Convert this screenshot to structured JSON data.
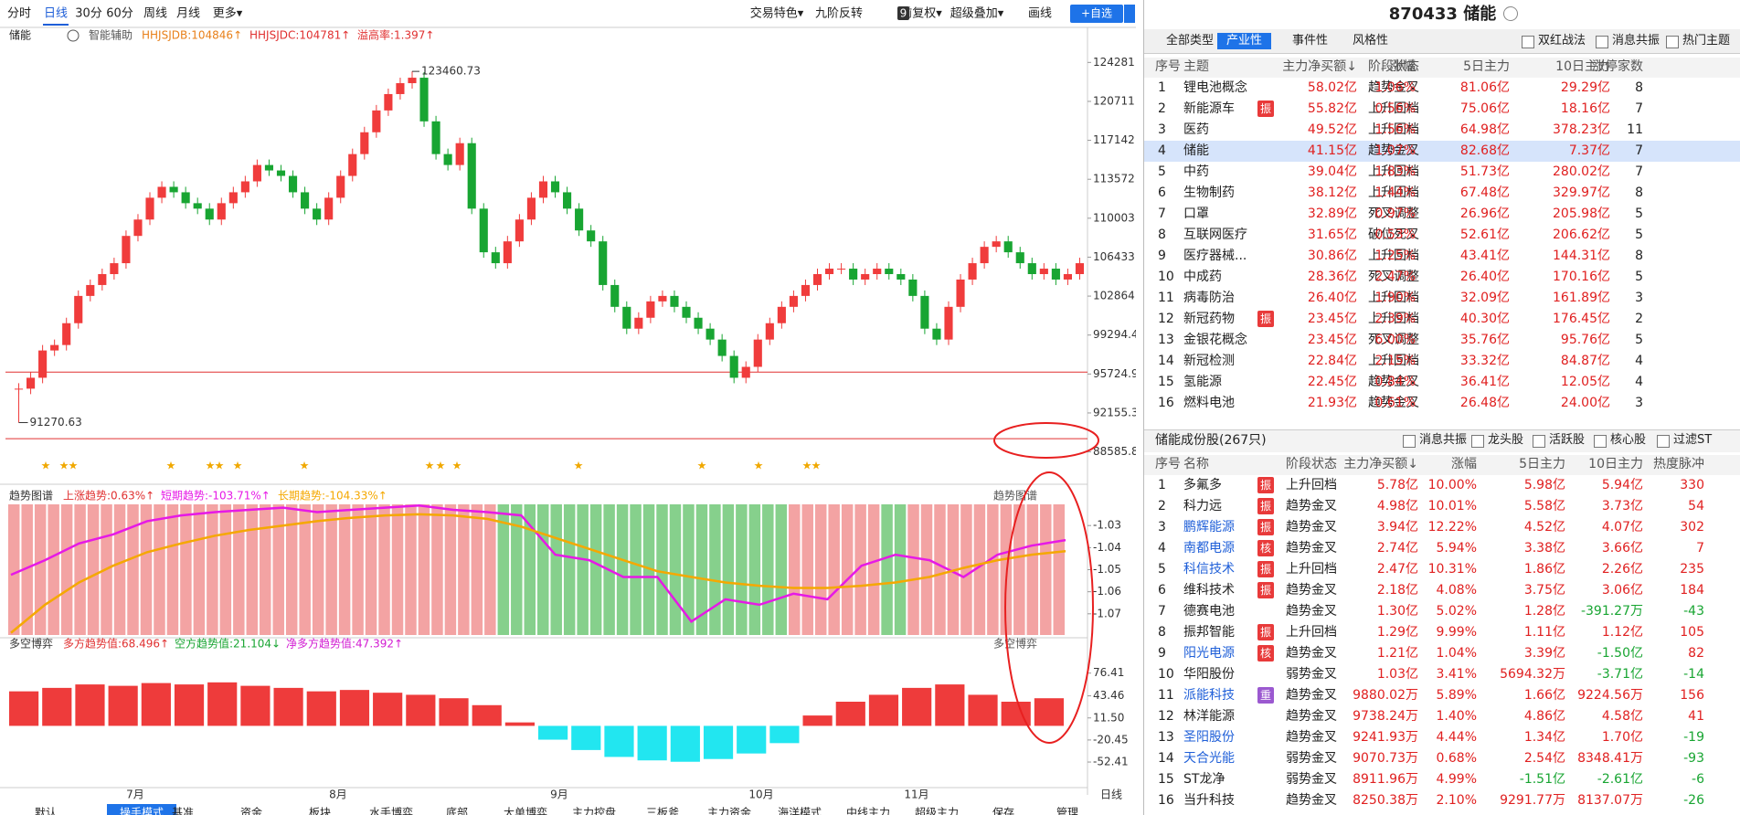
{
  "toolbar": {
    "periods": [
      "分时",
      "日线",
      "30分",
      "60分",
      "周线",
      "月线",
      "更多▾"
    ],
    "selected": 1,
    "tools": [
      "交易特色▾",
      "九阶反转",
      "前复权▾",
      "超级叠加▾",
      "画线"
    ],
    "badge": "9",
    "add_button": "+自选"
  },
  "main": {
    "header": {
      "name": "储能",
      "assist": "智能辅助",
      "ind1": "HHJSJDB:104846↑",
      "ind2": "HHJSJDC:104781↑",
      "ind3": "溢高率:1.397↑"
    },
    "ylim": [
      88300,
      125900
    ],
    "yticks": [
      {
        "value": 124281.3,
        "label": "124281.3"
      },
      {
        "value": 120711.74,
        "label": "120711.7"
      },
      {
        "value": 117142.2,
        "label": "117142.2"
      },
      {
        "value": 113572.6,
        "label": "113572.6"
      },
      {
        "value": 110003.1,
        "label": "110003.1"
      },
      {
        "value": 106433.5,
        "label": "106433.5"
      },
      {
        "value": 102864,
        "label": "102864.0"
      },
      {
        "value": 99294.46,
        "label": "99294.46"
      },
      {
        "value": 95724.91,
        "label": "95724.91"
      },
      {
        "value": 92155.36,
        "label": "92155.36"
      },
      {
        "value": 88585.81,
        "label": "88585.81"
      }
    ],
    "closes": [
      94381,
      95381,
      97881,
      98381,
      100381,
      102881,
      103881,
      104881,
      105881,
      108381,
      109881,
      111881,
      112881,
      112381,
      111381,
      110881,
      109881,
      111381,
      112381,
      113381,
      114881,
      114381,
      113881,
      112381,
      110881,
      109881,
      111881,
      113881,
      115881,
      117881,
      119881,
      121381,
      122381,
      122881,
      118881,
      115881,
      114881,
      116881,
      110881,
      106881,
      105881,
      107881,
      109881,
      111881,
      113381,
      112381,
      110881,
      108881,
      107881,
      103881,
      101881,
      99881,
      100881,
      102381,
      102881,
      101881,
      100881,
      99881,
      98881,
      97381,
      95381,
      96381,
      98881,
      100381,
      101881,
      102881,
      103881,
      104881,
      105381,
      105381,
      104381,
      104881,
      105381,
      104881,
      104381,
      102881,
      99881,
      98881,
      101881,
      104381,
      105881,
      107381,
      107881,
      106881,
      105881,
      104881,
      105381,
      104381,
      104881,
      105881
    ],
    "high": {
      "value": 123460.73,
      "label": "123460.73"
    },
    "low": {
      "value": 91270.63,
      "label": "91270.63"
    },
    "hlines": [
      95900,
      89800
    ],
    "up_color": "#f03c3c",
    "down_color": "#18a532"
  },
  "months": [
    "7月",
    "8月",
    "9月",
    "10月",
    "11月"
  ],
  "period_label": "日线",
  "trend": {
    "title": "趋势图谱",
    "up": "上涨趋势:0.63%↑",
    "short": "短期趋势:-103.71%↑",
    "long": "长期趋势:-104.33%↑",
    "right_title": "趋势图谱",
    "ylim": [
      -1.0796,
      -1.0204
    ],
    "yticks": [
      -1.03,
      -1.04,
      -1.05,
      -1.06,
      -1.07
    ],
    "short_values": [
      -1.0523,
      -1.0457,
      -1.0381,
      -1.034,
      -1.028,
      -1.0254,
      -1.0239,
      -1.0229,
      -1.0219,
      -1.0239,
      -1.0229,
      -1.0219,
      -1.0209,
      -1.0229,
      -1.0239,
      -1.0254,
      -1.0432,
      -1.0457,
      -1.0533,
      -1.0533,
      -1.0735,
      -1.0634,
      -1.0659,
      -1.0609,
      -1.0634,
      -1.0482,
      -1.0432,
      -1.0457,
      -1.0533,
      -1.0432,
      -1.0391,
      -1.0366
    ],
    "long_values": [
      -1.0786,
      -1.0659,
      -1.0558,
      -1.0482,
      -1.0421,
      -1.0381,
      -1.0346,
      -1.032,
      -1.03,
      -1.028,
      -1.0265,
      -1.0254,
      -1.0249,
      -1.0254,
      -1.027,
      -1.0305,
      -1.0356,
      -1.0406,
      -1.0457,
      -1.0507,
      -1.0533,
      -1.0558,
      -1.0573,
      -1.0583,
      -1.0583,
      -1.0573,
      -1.0558,
      -1.0533,
      -1.0492,
      -1.0457,
      -1.0432,
      -1.0416
    ],
    "short_color": "#e619e6",
    "long_color": "#f5a800"
  },
  "game": {
    "title": "多空博弈",
    "bull": "多方趋势值:68.496↑",
    "bear": "空方趋势值:21.104↓",
    "net": "净多方趋势值:47.392↑",
    "right_title": "多空博弈",
    "ylim": [
      -89.4,
      103.8
    ],
    "yticks": [
      {
        "value": 76.41,
        "label": "76.41"
      },
      {
        "value": 43.46,
        "label": "43.46"
      },
      {
        "value": 11.5,
        "label": "11.50"
      },
      {
        "value": -20.45,
        "label": "-20.45"
      },
      {
        "value": -52.41,
        "label": "-52.41"
      }
    ],
    "values": [
      50,
      55,
      60,
      58,
      62,
      60,
      63,
      58,
      55,
      50,
      52,
      48,
      45,
      40,
      30,
      5,
      -20,
      -35,
      -45,
      -50,
      -52,
      -48,
      -40,
      -25,
      15,
      35,
      45,
      55,
      60,
      45,
      35,
      40
    ],
    "pos_color": "#ee3b3b",
    "neg_color": "#22e6f0"
  },
  "tabs": [
    "默认",
    "操手模式",
    "基准",
    "资金",
    "板块",
    "水手博弈",
    "底部",
    "大单博弈",
    "主力控盘",
    "三板斧",
    "主力资金",
    "海洋模式",
    "中线主力",
    "超级主力",
    "保存",
    "管理"
  ],
  "tab_selected": 1,
  "right": {
    "title": "870433 储能",
    "type_tabs": [
      "全部类型",
      "产业性",
      "事件性",
      "风格性"
    ],
    "type_selected": 1,
    "filters": [
      "双红战法",
      "消息共振",
      "热门主题"
    ],
    "themes": {
      "headers": [
        "序号",
        "主题",
        "主力净买额↓",
        "阶段状态",
        "涨幅",
        "5日主力",
        "10日主力",
        "涨停家数"
      ],
      "selected_row": 3,
      "rows": [
        [
          "1",
          "锂电池概念",
          "",
          "58.02亿",
          "趋势金叉",
          "1.06%",
          "81.06亿",
          "29.29亿",
          "8"
        ],
        [
          "2",
          "新能源车",
          "振",
          "55.82亿",
          "上升回档",
          "0.56%",
          "75.06亿",
          "18.16亿",
          "7"
        ],
        [
          "3",
          "医药",
          "",
          "49.52亿",
          "上升回档",
          "1.56%",
          "64.98亿",
          "378.23亿",
          "11"
        ],
        [
          "4",
          "储能",
          "",
          "41.15亿",
          "趋势金叉",
          "1.07%",
          "82.68亿",
          "7.37亿",
          "7"
        ],
        [
          "5",
          "中药",
          "",
          "39.04亿",
          "上升回档",
          "1.83%",
          "51.73亿",
          "280.02亿",
          "7"
        ],
        [
          "6",
          "生物制药",
          "",
          "38.12亿",
          "上升回档",
          "1.44%",
          "67.48亿",
          "329.97亿",
          "8"
        ],
        [
          "7",
          "口罩",
          "",
          "32.89亿",
          "死叉调整",
          "0.97%",
          "26.96亿",
          "205.98亿",
          "5"
        ],
        [
          "8",
          "互联网医疗",
          "",
          "31.65亿",
          "破位死叉",
          "0.53%",
          "52.61亿",
          "206.62亿",
          "5"
        ],
        [
          "9",
          "医疗器械...",
          "",
          "30.86亿",
          "上升回档",
          "1.25%",
          "43.41亿",
          "144.31亿",
          "8"
        ],
        [
          "10",
          "中成药",
          "",
          "28.36亿",
          "死叉调整",
          "2.47%",
          "26.40亿",
          "170.16亿",
          "5"
        ],
        [
          "11",
          "病毒防治",
          "",
          "26.40亿",
          "上升回档",
          "1.90%",
          "32.09亿",
          "161.89亿",
          "3"
        ],
        [
          "12",
          "新冠药物",
          "振",
          "23.45亿",
          "上升回档",
          "2.39%",
          "40.30亿",
          "176.45亿",
          "2"
        ],
        [
          "13",
          "金银花概念",
          "",
          "23.45亿",
          "死叉调整",
          "6.00%",
          "35.76亿",
          "95.76亿",
          "5"
        ],
        [
          "14",
          "新冠检测",
          "",
          "22.84亿",
          "上升回档",
          "2.15%",
          "33.32亿",
          "84.87亿",
          "4"
        ],
        [
          "15",
          "氢能源",
          "",
          "22.45亿",
          "趋势金叉",
          "0.84%",
          "36.41亿",
          "12.05亿",
          "4"
        ],
        [
          "16",
          "燃料电池",
          "",
          "21.93亿",
          "趋势金叉",
          "0.61%",
          "26.48亿",
          "24.00亿",
          "3"
        ]
      ]
    },
    "stocks_title": "储能成份股(267只)",
    "stock_filters": [
      "消息共振",
      "龙头股",
      "活跃股",
      "核心股",
      "过滤ST"
    ],
    "stocks": {
      "headers": [
        "序号",
        "名称",
        "阶段状态",
        "主力净买额↓",
        "涨幅",
        "5日主力",
        "10日主力",
        "热度脉冲"
      ],
      "link_color": "#1f5fd8",
      "links": [
        2,
        3,
        4,
        8,
        10,
        12,
        13
      ],
      "rows": [
        [
          "1",
          "多氟多",
          "振",
          "上升回档",
          "5.78亿",
          "10.00%",
          "5.98亿",
          "5.94亿",
          "330"
        ],
        [
          "2",
          "科力远",
          "振",
          "趋势金叉",
          "4.98亿",
          "10.01%",
          "5.58亿",
          "3.73亿",
          "54"
        ],
        [
          "3",
          "鹏辉能源",
          "振",
          "趋势金叉",
          "3.94亿",
          "12.22%",
          "4.52亿",
          "4.07亿",
          "302"
        ],
        [
          "4",
          "南都电源",
          "核",
          "趋势金叉",
          "2.74亿",
          "5.94%",
          "3.38亿",
          "3.66亿",
          "7"
        ],
        [
          "5",
          "科信技术",
          "振",
          "上升回档",
          "2.47亿",
          "10.31%",
          "1.86亿",
          "2.26亿",
          "235"
        ],
        [
          "6",
          "维科技术",
          "振",
          "趋势金叉",
          "2.18亿",
          "4.08%",
          "3.75亿",
          "3.06亿",
          "184"
        ],
        [
          "7",
          "德赛电池",
          "",
          "趋势金叉",
          "1.30亿",
          "5.02%",
          "1.28亿",
          "-391.27万",
          "-43"
        ],
        [
          "8",
          "振邦智能",
          "振",
          "上升回档",
          "1.29亿",
          "9.99%",
          "1.11亿",
          "1.12亿",
          "105"
        ],
        [
          "9",
          "阳光电源",
          "核",
          "趋势金叉",
          "1.21亿",
          "1.04%",
          "3.39亿",
          "-1.50亿",
          "82"
        ],
        [
          "10",
          "华阳股份",
          "",
          "弱势金叉",
          "1.03亿",
          "3.41%",
          "5694.32万",
          "-3.71亿",
          "-14"
        ],
        [
          "11",
          "派能科技",
          "重",
          "趋势金叉",
          "9880.02万",
          "5.89%",
          "1.66亿",
          "9224.56万",
          "156"
        ],
        [
          "12",
          "林洋能源",
          "",
          "趋势金叉",
          "9738.24万",
          "1.40%",
          "4.86亿",
          "4.58亿",
          "41"
        ],
        [
          "13",
          "圣阳股份",
          "",
          "趋势金叉",
          "9241.93万",
          "4.44%",
          "1.34亿",
          "1.70亿",
          "-19"
        ],
        [
          "14",
          "天合光能",
          "",
          "弱势金叉",
          "9070.73万",
          "0.68%",
          "2.54亿",
          "8348.41万",
          "-93"
        ],
        [
          "15",
          "ST龙净",
          "",
          "弱势金叉",
          "8911.96万",
          "4.99%",
          "-1.51亿",
          "-2.61亿",
          "-6"
        ],
        [
          "16",
          "当升科技",
          "",
          "趋势金叉",
          "8250.38万",
          "2.10%",
          "9291.77万",
          "8137.07万",
          "-26"
        ]
      ]
    }
  }
}
